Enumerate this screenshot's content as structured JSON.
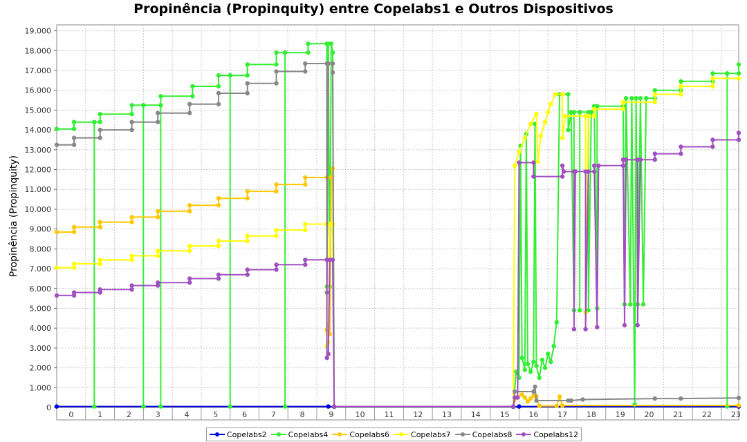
{
  "chart_data": {
    "type": "line",
    "title": "Propinência (Propinquity) entre Copelabs1 e Outros Dispositivos",
    "xlabel": "",
    "ylabel": "Propinência (Propinquity)",
    "xlim": [
      0,
      23.6
    ],
    "ylim": [
      0,
      19300
    ],
    "x_ticks": [
      "0",
      "1",
      "2",
      "3",
      "4",
      "5",
      "6",
      "7",
      "8",
      "9",
      "10",
      "11",
      "12",
      "13",
      "14",
      "15",
      "16",
      "17",
      "18",
      "19",
      "20",
      "21",
      "22",
      "23"
    ],
    "y_ticks": [
      "0",
      "1.000",
      "2.000",
      "3.000",
      "4.000",
      "5.000",
      "6.000",
      "7.000",
      "8.000",
      "9.000",
      "10.000",
      "11.000",
      "12.000",
      "13.000",
      "14.000",
      "15.000",
      "16.000",
      "17.000",
      "18.000",
      "19.000"
    ],
    "grid": true,
    "legend_position": "bottom",
    "series": [
      {
        "name": "Copelabs2",
        "color": "#0000e0",
        "points": [
          [
            0,
            50
          ],
          [
            9.4,
            50
          ],
          [
            9.6,
            30
          ],
          [
            15.8,
            30
          ],
          [
            16,
            50
          ],
          [
            23.6,
            50
          ]
        ]
      },
      {
        "name": "Copelabs4",
        "color": "#33ee33",
        "points": [
          [
            0,
            14050
          ],
          [
            0.6,
            14050
          ],
          [
            0.6,
            14400
          ],
          [
            1.3,
            14400
          ],
          [
            1.3,
            50
          ],
          [
            1.3,
            14400
          ],
          [
            1.5,
            14400
          ],
          [
            1.5,
            14800
          ],
          [
            2.6,
            14800
          ],
          [
            2.6,
            15250
          ],
          [
            3,
            15250
          ],
          [
            3,
            50
          ],
          [
            3,
            15250
          ],
          [
            3.6,
            15250
          ],
          [
            3.6,
            50
          ],
          [
            3.6,
            15700
          ],
          [
            4.7,
            15700
          ],
          [
            4.7,
            16200
          ],
          [
            5.6,
            16200
          ],
          [
            5.6,
            16750
          ],
          [
            6,
            16750
          ],
          [
            6,
            50
          ],
          [
            6,
            16750
          ],
          [
            6.6,
            16750
          ],
          [
            6.6,
            17300
          ],
          [
            7.6,
            17300
          ],
          [
            7.6,
            17900
          ],
          [
            7.9,
            17900
          ],
          [
            7.9,
            50
          ],
          [
            7.9,
            17900
          ],
          [
            8.7,
            17900
          ],
          [
            8.7,
            18350
          ],
          [
            9.35,
            18350
          ],
          [
            9.35,
            6100
          ],
          [
            9.4,
            18350
          ],
          [
            9.45,
            6100
          ],
          [
            9.5,
            18350
          ],
          [
            9.55,
            17900
          ],
          [
            9.6,
            50
          ],
          [
            15.8,
            50
          ],
          [
            15.9,
            1800
          ],
          [
            16.0,
            1500
          ],
          [
            16.05,
            13200
          ],
          [
            16.1,
            2500
          ],
          [
            16.2,
            1900
          ],
          [
            16.25,
            13800
          ],
          [
            16.3,
            2200
          ],
          [
            16.4,
            1800
          ],
          [
            16.5,
            2300
          ],
          [
            16.55,
            14300
          ],
          [
            16.6,
            2100
          ],
          [
            16.7,
            1500
          ],
          [
            16.8,
            2400
          ],
          [
            16.9,
            2000
          ],
          [
            17.0,
            2700
          ],
          [
            17.1,
            2300
          ],
          [
            17.2,
            3100
          ],
          [
            17.3,
            4300
          ],
          [
            17.4,
            15800
          ],
          [
            17.7,
            15800
          ],
          [
            17.7,
            14000
          ],
          [
            17.8,
            14900
          ],
          [
            17.9,
            4900
          ],
          [
            17.9,
            14900
          ],
          [
            18.1,
            14900
          ],
          [
            18.1,
            4900
          ],
          [
            18.1,
            14900
          ],
          [
            18.4,
            14900
          ],
          [
            18.4,
            4900
          ],
          [
            18.5,
            14900
          ],
          [
            18.6,
            15200
          ],
          [
            18.7,
            5000
          ],
          [
            18.7,
            15200
          ],
          [
            19.6,
            15200
          ],
          [
            19.65,
            5200
          ],
          [
            19.7,
            15600
          ],
          [
            19.85,
            5200
          ],
          [
            19.9,
            15600
          ],
          [
            20.0,
            150
          ],
          [
            20.05,
            15600
          ],
          [
            20.1,
            5200
          ],
          [
            20.2,
            15600
          ],
          [
            20.3,
            5200
          ],
          [
            20.4,
            15600
          ],
          [
            20.7,
            15600
          ],
          [
            20.7,
            16000
          ],
          [
            21.6,
            16000
          ],
          [
            21.6,
            16450
          ],
          [
            22.7,
            16450
          ],
          [
            22.7,
            16850
          ],
          [
            23.2,
            16850
          ],
          [
            23.2,
            50
          ],
          [
            23.2,
            16850
          ],
          [
            23.6,
            16850
          ],
          [
            23.6,
            17300
          ]
        ]
      },
      {
        "name": "Copelabs6",
        "color": "#ffc800",
        "points": [
          [
            0,
            8850
          ],
          [
            0.6,
            8850
          ],
          [
            0.6,
            9100
          ],
          [
            1.5,
            9100
          ],
          [
            1.5,
            9350
          ],
          [
            2.6,
            9350
          ],
          [
            2.6,
            9600
          ],
          [
            3.5,
            9600
          ],
          [
            3.5,
            9900
          ],
          [
            4.6,
            9900
          ],
          [
            4.6,
            10200
          ],
          [
            5.6,
            10200
          ],
          [
            5.6,
            10550
          ],
          [
            6.6,
            10550
          ],
          [
            6.6,
            10900
          ],
          [
            7.6,
            10900
          ],
          [
            7.6,
            11250
          ],
          [
            8.6,
            11250
          ],
          [
            8.6,
            11600
          ],
          [
            9.35,
            11600
          ],
          [
            9.35,
            3900
          ],
          [
            9.4,
            4200
          ],
          [
            9.45,
            3700
          ],
          [
            9.5,
            11600
          ],
          [
            9.55,
            12050
          ],
          [
            9.6,
            50
          ],
          [
            15.8,
            50
          ],
          [
            15.9,
            500
          ],
          [
            16.1,
            650
          ],
          [
            16.2,
            500
          ],
          [
            16.3,
            300
          ],
          [
            16.4,
            450
          ],
          [
            16.5,
            600
          ],
          [
            16.6,
            550
          ],
          [
            16.7,
            80
          ],
          [
            17.3,
            80
          ],
          [
            17.4,
            550
          ],
          [
            17.5,
            100
          ],
          [
            23.6,
            100
          ]
        ]
      },
      {
        "name": "Copelabs7",
        "color": "#ffff00",
        "points": [
          [
            0,
            7050
          ],
          [
            0.6,
            7050
          ],
          [
            0.6,
            7250
          ],
          [
            1.5,
            7250
          ],
          [
            1.5,
            7450
          ],
          [
            2.6,
            7450
          ],
          [
            2.6,
            7650
          ],
          [
            3.5,
            7650
          ],
          [
            3.5,
            7900
          ],
          [
            4.6,
            7900
          ],
          [
            4.6,
            8150
          ],
          [
            5.6,
            8150
          ],
          [
            5.6,
            8400
          ],
          [
            6.6,
            8400
          ],
          [
            6.6,
            8650
          ],
          [
            7.6,
            8650
          ],
          [
            7.6,
            8950
          ],
          [
            8.6,
            8950
          ],
          [
            8.6,
            9250
          ],
          [
            9.35,
            9250
          ],
          [
            9.35,
            3100
          ],
          [
            9.4,
            3300
          ],
          [
            9.45,
            9250
          ],
          [
            9.55,
            9250
          ],
          [
            9.6,
            50
          ],
          [
            15.8,
            50
          ],
          [
            15.85,
            12200
          ],
          [
            16.0,
            12900
          ],
          [
            16.2,
            13600
          ],
          [
            16.4,
            14300
          ],
          [
            16.6,
            14800
          ],
          [
            16.65,
            12400
          ],
          [
            16.75,
            13700
          ],
          [
            16.9,
            14400
          ],
          [
            17.0,
            14900
          ],
          [
            17.1,
            15300
          ],
          [
            17.25,
            15800
          ],
          [
            17.5,
            15800
          ],
          [
            17.5,
            13600
          ],
          [
            17.6,
            14700
          ],
          [
            18.3,
            14700
          ],
          [
            18.3,
            4800
          ],
          [
            18.4,
            14700
          ],
          [
            18.6,
            14700
          ],
          [
            18.6,
            15050
          ],
          [
            19.6,
            15050
          ],
          [
            19.6,
            15400
          ],
          [
            20.7,
            15400
          ],
          [
            20.7,
            15800
          ],
          [
            21.6,
            15800
          ],
          [
            21.6,
            16200
          ],
          [
            22.7,
            16200
          ],
          [
            22.7,
            16600
          ],
          [
            23.6,
            16600
          ]
        ]
      },
      {
        "name": "Copelabs8",
        "color": "#888888",
        "points": [
          [
            0,
            13250
          ],
          [
            0.6,
            13250
          ],
          [
            0.6,
            13600
          ],
          [
            1.5,
            13600
          ],
          [
            1.5,
            14000
          ],
          [
            2.6,
            14000
          ],
          [
            2.6,
            14400
          ],
          [
            3.5,
            14400
          ],
          [
            3.5,
            14850
          ],
          [
            4.6,
            14850
          ],
          [
            4.6,
            15300
          ],
          [
            5.6,
            15300
          ],
          [
            5.6,
            15850
          ],
          [
            6.6,
            15850
          ],
          [
            6.6,
            16350
          ],
          [
            7.6,
            16350
          ],
          [
            7.6,
            16950
          ],
          [
            8.6,
            16950
          ],
          [
            8.6,
            17350
          ],
          [
            9.35,
            17350
          ],
          [
            9.35,
            5800
          ],
          [
            9.4,
            17350
          ],
          [
            9.55,
            17350
          ],
          [
            9.55,
            16900
          ],
          [
            9.6,
            50
          ],
          [
            15.8,
            50
          ],
          [
            15.85,
            800
          ],
          [
            16.5,
            800
          ],
          [
            16.55,
            1050
          ],
          [
            16.6,
            350
          ],
          [
            17.7,
            350
          ],
          [
            17.8,
            350
          ],
          [
            18.2,
            400
          ],
          [
            20.7,
            450
          ],
          [
            21.6,
            450
          ],
          [
            23.6,
            480
          ]
        ]
      },
      {
        "name": "Copelabs12",
        "color": "#a050c0",
        "points": [
          [
            0,
            5650
          ],
          [
            0.6,
            5650
          ],
          [
            0.6,
            5800
          ],
          [
            1.5,
            5800
          ],
          [
            1.5,
            5950
          ],
          [
            2.6,
            5950
          ],
          [
            2.6,
            6150
          ],
          [
            3.5,
            6150
          ],
          [
            3.5,
            6300
          ],
          [
            4.6,
            6300
          ],
          [
            4.6,
            6500
          ],
          [
            5.6,
            6500
          ],
          [
            5.6,
            6700
          ],
          [
            6.6,
            6700
          ],
          [
            6.6,
            6950
          ],
          [
            7.6,
            6950
          ],
          [
            7.6,
            7200
          ],
          [
            8.6,
            7200
          ],
          [
            8.6,
            7450
          ],
          [
            9.35,
            7450
          ],
          [
            9.35,
            2500
          ],
          [
            9.4,
            2700
          ],
          [
            9.45,
            7450
          ],
          [
            9.55,
            7450
          ],
          [
            9.6,
            50
          ],
          [
            15.8,
            50
          ],
          [
            15.85,
            500
          ],
          [
            15.95,
            500
          ],
          [
            16.0,
            12350
          ],
          [
            16.5,
            12350
          ],
          [
            16.5,
            11650
          ],
          [
            17.5,
            11650
          ],
          [
            17.5,
            12200
          ],
          [
            17.55,
            11900
          ],
          [
            17.9,
            11900
          ],
          [
            17.9,
            3950
          ],
          [
            17.95,
            11900
          ],
          [
            18.3,
            11900
          ],
          [
            18.3,
            3950
          ],
          [
            18.4,
            11900
          ],
          [
            18.6,
            11900
          ],
          [
            18.6,
            12200
          ],
          [
            18.7,
            4050
          ],
          [
            18.75,
            12200
          ],
          [
            19.6,
            12200
          ],
          [
            19.6,
            12500
          ],
          [
            19.65,
            4150
          ],
          [
            19.7,
            12500
          ],
          [
            20.1,
            12500
          ],
          [
            20.1,
            4150
          ],
          [
            20.2,
            12500
          ],
          [
            20.7,
            12500
          ],
          [
            20.7,
            12800
          ],
          [
            21.6,
            12800
          ],
          [
            21.6,
            13150
          ],
          [
            22.7,
            13150
          ],
          [
            22.7,
            13500
          ],
          [
            23.6,
            13500
          ],
          [
            23.6,
            13850
          ]
        ]
      }
    ]
  }
}
